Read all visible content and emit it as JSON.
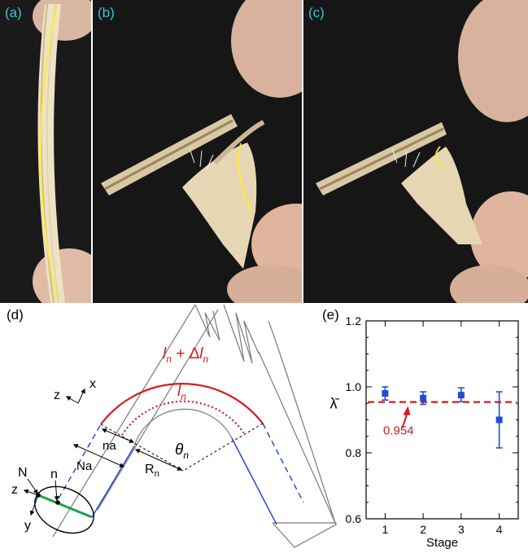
{
  "panels": {
    "a": "(a)",
    "b": "(b)",
    "c": "(c)",
    "d": "(d)",
    "e": "(e)"
  },
  "diagram": {
    "outer_label": {
      "l": "l",
      "n": "n",
      "plus": " + Δ",
      "l2": "l",
      "n2": "n"
    },
    "inner_label": {
      "l": "l",
      "n": "n"
    },
    "theta": {
      "sym": "θ",
      "sub": "n"
    },
    "R": {
      "sym": "R",
      "sub": "n"
    },
    "na": "na",
    "Na": "Na",
    "N": "N",
    "n": "n",
    "axes_top": {
      "z": "z",
      "x": "x"
    },
    "axes_bottom": {
      "z": "z",
      "y": "y"
    },
    "colors": {
      "outer": "#d81b1b",
      "inner": "#d81b1b",
      "blue": "#1f3fd0",
      "gray": "#7a7a7a",
      "green": "#1aa34a"
    }
  },
  "chart_data": {
    "type": "scatter",
    "panel": "(e)",
    "categories": [
      "1",
      "2",
      "3",
      "4"
    ],
    "x": [
      1,
      2,
      3,
      4
    ],
    "series": [
      {
        "values": [
          0.98,
          0.966,
          0.975,
          0.9
        ],
        "err_low": [
          0.96,
          0.947,
          0.955,
          0.815
        ],
        "err_high": [
          1.0,
          0.985,
          0.997,
          0.985
        ],
        "color": "#1f4fd8"
      }
    ],
    "reference_line": {
      "value": 0.954,
      "label": "0.954",
      "color": "#d81b1b",
      "style": "dashed"
    },
    "xlabel": "Stage",
    "ylabel": "λ̄",
    "xlim": [
      0.5,
      4.5
    ],
    "ylim": [
      0.6,
      1.2
    ],
    "yticks": [
      "0.6",
      "0.8",
      "1.0",
      "1.2"
    ],
    "xticks": [
      "1",
      "2",
      "3",
      "4"
    ]
  }
}
